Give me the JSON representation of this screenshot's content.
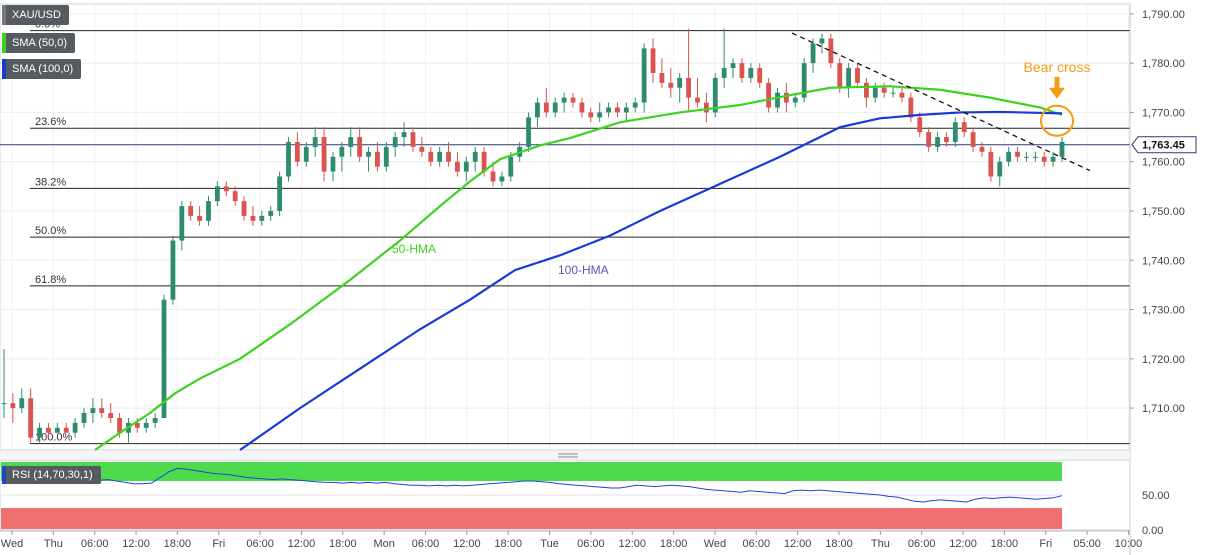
{
  "legend": {
    "symbol": "XAU/USD",
    "sma50": "SMA (50,0)",
    "sma100": "SMA (100,0)",
    "rsi": "RSI (14,70,30,1)"
  },
  "colors": {
    "hma50": "#3ad31e",
    "hma100": "#1a3ad6",
    "bull": "#2e8b6e",
    "bear": "#d9534f",
    "annotation": "#f39c12",
    "rsi_line": "#2244cc",
    "rsi_overbought": "#4cdb4c",
    "rsi_oversold": "#f07070"
  },
  "chart_data": {
    "type": "candlestick",
    "y_ticks": [
      "1,790.00",
      "1,780.00",
      "1,770.00",
      "1,760.00",
      "1,750.00",
      "1,740.00",
      "1,730.00",
      "1,720.00",
      "1,710.00"
    ],
    "ylim": [
      1701.5,
      1792
    ],
    "x_ticks": [
      "Wed",
      "Thu",
      "06:00",
      "12:00",
      "18:00",
      "Fri",
      "06:00",
      "12:00",
      "18:00",
      "Mon",
      "06:00",
      "12:00",
      "18:00",
      "Tue",
      "06:00",
      "12:00",
      "18:00",
      "Wed",
      "06:00",
      "12:00",
      "18:00",
      "Thu",
      "06:00",
      "12:00",
      "18:00",
      "Fri",
      "05:00",
      "10:00"
    ],
    "current_price": 1763.45,
    "current_price_label": "1,763.45",
    "fib_levels": [
      {
        "label": "0.0%",
        "price": 1786.6
      },
      {
        "label": "23.6%",
        "price": 1766.8
      },
      {
        "label": "38.2%",
        "price": 1754.6
      },
      {
        "label": "50.0%",
        "price": 1744.7
      },
      {
        "label": "61.8%",
        "price": 1734.8
      },
      {
        "label": "100.0%",
        "price": 1702.8
      }
    ],
    "candles": [
      [
        1711,
        1722,
        1708,
        1711
      ],
      [
        1711,
        1713,
        1707,
        1710
      ],
      [
        1710,
        1714,
        1709,
        1712
      ],
      [
        1712,
        1714,
        1703,
        1704
      ],
      [
        1704,
        1707,
        1703,
        1706
      ],
      [
        1706,
        1707,
        1704,
        1705
      ],
      [
        1705,
        1707,
        1705,
        1706
      ],
      [
        1706,
        1707,
        1705,
        1705
      ],
      [
        1705,
        1708,
        1704,
        1707
      ],
      [
        1707,
        1710,
        1706,
        1709
      ],
      [
        1709,
        1712,
        1707,
        1710
      ],
      [
        1710,
        1712,
        1708,
        1709
      ],
      [
        1709,
        1711,
        1707,
        1708
      ],
      [
        1708,
        1709,
        1704,
        1705
      ],
      [
        1705,
        1708,
        1703,
        1707
      ],
      [
        1707,
        1708,
        1705,
        1706
      ],
      [
        1706,
        1708,
        1705,
        1707
      ],
      [
        1707,
        1709,
        1706,
        1708
      ],
      [
        1708,
        1733,
        1708,
        1732
      ],
      [
        1732,
        1745,
        1731,
        1744
      ],
      [
        1744,
        1752,
        1742,
        1751
      ],
      [
        1751,
        1752,
        1748,
        1749
      ],
      [
        1749,
        1751,
        1747,
        1748
      ],
      [
        1748,
        1753,
        1747,
        1752
      ],
      [
        1752,
        1756,
        1751,
        1755
      ],
      [
        1755,
        1756,
        1753,
        1754
      ],
      [
        1754,
        1755,
        1751,
        1752
      ],
      [
        1752,
        1753,
        1748,
        1749
      ],
      [
        1749,
        1751,
        1747,
        1748
      ],
      [
        1748,
        1750,
        1747,
        1749
      ],
      [
        1749,
        1751,
        1748,
        1750
      ],
      [
        1750,
        1758,
        1749,
        1757
      ],
      [
        1757,
        1765,
        1756,
        1764
      ],
      [
        1764,
        1766,
        1759,
        1760
      ],
      [
        1760,
        1764,
        1759,
        1763
      ],
      [
        1763,
        1767,
        1761,
        1765
      ],
      [
        1765,
        1767,
        1756,
        1758
      ],
      [
        1758,
        1762,
        1756,
        1761
      ],
      [
        1761,
        1764,
        1758,
        1763
      ],
      [
        1763,
        1767,
        1761,
        1765
      ],
      [
        1765,
        1767,
        1760,
        1761
      ],
      [
        1761,
        1763,
        1758,
        1762
      ],
      [
        1762,
        1764,
        1758,
        1759
      ],
      [
        1759,
        1764,
        1758,
        1763
      ],
      [
        1763,
        1766,
        1761,
        1765
      ],
      [
        1765,
        1768,
        1763,
        1766
      ],
      [
        1766,
        1767,
        1762,
        1763
      ],
      [
        1763,
        1765,
        1761,
        1762
      ],
      [
        1762,
        1763,
        1759,
        1760
      ],
      [
        1760,
        1763,
        1759,
        1762
      ],
      [
        1762,
        1764,
        1759,
        1760
      ],
      [
        1760,
        1762,
        1757,
        1758
      ],
      [
        1758,
        1761,
        1756,
        1760
      ],
      [
        1760,
        1763,
        1758,
        1762
      ],
      [
        1762,
        1763,
        1757,
        1758
      ],
      [
        1758,
        1760,
        1755,
        1756
      ],
      [
        1756,
        1758,
        1755,
        1757
      ],
      [
        1757,
        1762,
        1756,
        1761
      ],
      [
        1761,
        1764,
        1760,
        1763
      ],
      [
        1763,
        1770,
        1762,
        1769
      ],
      [
        1769,
        1773,
        1767,
        1772
      ],
      [
        1772,
        1775,
        1769,
        1770
      ],
      [
        1770,
        1773,
        1769,
        1772
      ],
      [
        1772,
        1774,
        1770,
        1773
      ],
      [
        1773,
        1774,
        1771,
        1772
      ],
      [
        1772,
        1773,
        1769,
        1770
      ],
      [
        1770,
        1771,
        1768,
        1769
      ],
      [
        1769,
        1772,
        1768,
        1770
      ],
      [
        1770,
        1772,
        1769,
        1771
      ],
      [
        1771,
        1772,
        1769,
        1770
      ],
      [
        1770,
        1772,
        1768,
        1771
      ],
      [
        1771,
        1773,
        1770,
        1772
      ],
      [
        1772,
        1784,
        1770,
        1783
      ],
      [
        1783,
        1785,
        1776,
        1778
      ],
      [
        1778,
        1781,
        1775,
        1776
      ],
      [
        1776,
        1779,
        1773,
        1775
      ],
      [
        1775,
        1778,
        1772,
        1777
      ],
      [
        1777,
        1787,
        1770,
        1773
      ],
      [
        1773,
        1777,
        1771,
        1772
      ],
      [
        1772,
        1774,
        1768,
        1770
      ],
      [
        1770,
        1778,
        1769,
        1777
      ],
      [
        1777,
        1787,
        1775,
        1779
      ],
      [
        1779,
        1781,
        1777,
        1780
      ],
      [
        1780,
        1781,
        1776,
        1777
      ],
      [
        1777,
        1780,
        1776,
        1779
      ],
      [
        1779,
        1780,
        1775,
        1776
      ],
      [
        1776,
        1777,
        1770,
        1771
      ],
      [
        1771,
        1775,
        1770,
        1774
      ],
      [
        1774,
        1776,
        1770,
        1772
      ],
      [
        1772,
        1774,
        1771,
        1773
      ],
      [
        1773,
        1781,
        1772,
        1780
      ],
      [
        1780,
        1785,
        1778,
        1784
      ],
      [
        1784,
        1786,
        1782,
        1785
      ],
      [
        1785,
        1786,
        1779,
        1780
      ],
      [
        1780,
        1781,
        1774,
        1775
      ],
      [
        1775,
        1780,
        1773,
        1779
      ],
      [
        1779,
        1780,
        1775,
        1776
      ],
      [
        1776,
        1777,
        1771,
        1773
      ],
      [
        1773,
        1776,
        1772,
        1775
      ],
      [
        1775,
        1776,
        1773,
        1774
      ],
      [
        1774,
        1775,
        1773,
        1774
      ],
      [
        1774,
        1775,
        1772,
        1773
      ],
      [
        1773,
        1774,
        1768,
        1769
      ],
      [
        1769,
        1770,
        1765,
        1766
      ],
      [
        1766,
        1767,
        1762,
        1763
      ],
      [
        1763,
        1766,
        1762,
        1765
      ],
      [
        1765,
        1766,
        1763,
        1764
      ],
      [
        1764,
        1769,
        1763,
        1768
      ],
      [
        1768,
        1769,
        1765,
        1766
      ],
      [
        1766,
        1767,
        1762,
        1763
      ],
      [
        1763,
        1764,
        1761,
        1762
      ],
      [
        1762,
        1763,
        1756,
        1757
      ],
      [
        1757,
        1761,
        1755,
        1760
      ],
      [
        1760,
        1763,
        1759,
        1762
      ],
      [
        1762,
        1763,
        1760,
        1761
      ],
      [
        1761,
        1762,
        1760,
        1761
      ],
      [
        1761,
        1762,
        1760,
        1761
      ],
      [
        1761,
        1762,
        1759,
        1760
      ],
      [
        1760,
        1762,
        1759,
        1761
      ],
      [
        1761,
        1765,
        1760,
        1764
      ]
    ],
    "candle_x_range": [
      4,
      1062
    ],
    "series": [
      {
        "name": "50-HMA",
        "points": [
          [
            95,
            1701.5
          ],
          [
            120,
            1705
          ],
          [
            150,
            1709
          ],
          [
            175,
            1713
          ],
          [
            200,
            1716
          ],
          [
            240,
            1720
          ],
          [
            290,
            1727
          ],
          [
            350,
            1736
          ],
          [
            400,
            1744
          ],
          [
            440,
            1751
          ],
          [
            470,
            1756
          ],
          [
            500,
            1760.5
          ],
          [
            540,
            1763.3
          ],
          [
            570,
            1764.8
          ],
          [
            620,
            1768
          ],
          [
            680,
            1770
          ],
          [
            740,
            1771.5
          ],
          [
            790,
            1773.5
          ],
          [
            830,
            1775
          ],
          [
            890,
            1775.3
          ],
          [
            940,
            1774.6
          ],
          [
            990,
            1773
          ],
          [
            1040,
            1771
          ],
          [
            1062,
            1769.5
          ]
        ]
      },
      {
        "name": "100-HMA",
        "points": [
          [
            240,
            1701.5
          ],
          [
            300,
            1710
          ],
          [
            360,
            1718
          ],
          [
            420,
            1726
          ],
          [
            470,
            1732
          ],
          [
            515,
            1738
          ],
          [
            560,
            1741
          ],
          [
            610,
            1745
          ],
          [
            660,
            1750
          ],
          [
            720,
            1755.5
          ],
          [
            780,
            1761
          ],
          [
            840,
            1767
          ],
          [
            880,
            1768.8
          ],
          [
            920,
            1769.5
          ],
          [
            960,
            1770
          ],
          [
            1000,
            1770.1
          ],
          [
            1062,
            1769.8
          ]
        ]
      }
    ],
    "series_label_positions": [
      {
        "text": "50-HMA",
        "x": 392,
        "y": 1741.5
      },
      {
        "text": "100-HMA",
        "x": 558,
        "y": 1737.2
      }
    ],
    "trendline": {
      "x": [
        792,
        1090
      ],
      "y": [
        1786.1,
        1758.2
      ]
    },
    "annotation": {
      "text": "Bear cross",
      "x": 1057,
      "y": 1768.3
    },
    "rsi": {
      "ticks": [
        "50.00",
        "0.00"
      ],
      "levels": [
        70,
        30
      ],
      "values": [
        78,
        72,
        70,
        70,
        71,
        70,
        70,
        70,
        71,
        70,
        72,
        71,
        72,
        70,
        68,
        66,
        66,
        67,
        75,
        83,
        88,
        87,
        85,
        83,
        81,
        80,
        79,
        77,
        75,
        74,
        73,
        72,
        73,
        72,
        71,
        70,
        69,
        68,
        68,
        67,
        68,
        67,
        68,
        67,
        68,
        66,
        65,
        64,
        64,
        63,
        64,
        63,
        64,
        63,
        64,
        65,
        66,
        67,
        68,
        69,
        70,
        70,
        69,
        68,
        66,
        65,
        64,
        63,
        62,
        61,
        60,
        60,
        62,
        64,
        63,
        62,
        63,
        64,
        63,
        62,
        60,
        58,
        57,
        56,
        55,
        54,
        56,
        55,
        54,
        53,
        52,
        56,
        57,
        56,
        57,
        56,
        55,
        54,
        53,
        52,
        51,
        50,
        48,
        47,
        44,
        41,
        40,
        42,
        43,
        42,
        41,
        40,
        44,
        46,
        45,
        46,
        47,
        46,
        45,
        44,
        45,
        46,
        49
      ]
    }
  }
}
